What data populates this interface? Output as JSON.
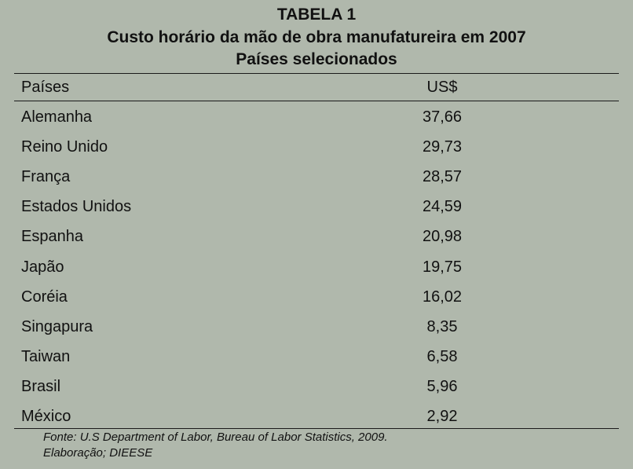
{
  "table": {
    "title": "TABELA 1",
    "subtitle": "Custo horário da mão de obra manufatureira em 2007",
    "subtitle2": "Países selecionados",
    "header_country": "Países",
    "header_value": "US$",
    "source": "Fonte: U.S Department of Labor, Bureau of Labor Statistics, 2009.",
    "credit": "Elaboração; DIEESE"
  },
  "chart_data": {
    "type": "table",
    "title": "TABELA 1",
    "subtitle": "Custo horário da mão de obra manufatureira em 2007",
    "columns": [
      "Países",
      "US$"
    ],
    "rows": [
      [
        "Alemanha",
        "37,66"
      ],
      [
        "Reino Unido",
        "29,73"
      ],
      [
        "França",
        "28,57"
      ],
      [
        "Estados Unidos",
        "24,59"
      ],
      [
        "Espanha",
        "20,98"
      ],
      [
        "Japão",
        "19,75"
      ],
      [
        "Coréia",
        "16,02"
      ],
      [
        "Singapura",
        "8,35"
      ],
      [
        "Taiwan",
        "6,58"
      ],
      [
        "Brasil",
        "5,96"
      ],
      [
        "México",
        "2,92"
      ]
    ]
  }
}
